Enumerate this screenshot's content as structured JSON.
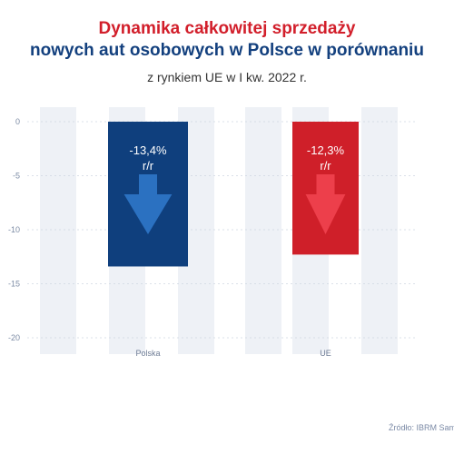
{
  "title_line1": "Dynamika całkowitej sprzedaży",
  "title_line2": "nowych aut osobowych w Polsce w porównaniu",
  "subtitle": "z rynkiem UE w I kw. 2022 r.",
  "source": "Źródło: IBRM Sam",
  "colors": {
    "poland": "#0f3f7d",
    "eu": "#cf1f29",
    "arrow_poland": "#2f77c9",
    "arrow_eu": "#f0434f",
    "band": "#eef1f6"
  },
  "chart_data": {
    "type": "bar",
    "categories": [
      "Polska",
      "UE"
    ],
    "values": [
      -13.4,
      -12.3
    ],
    "labels": [
      "-13,4%\nr/r",
      "-12,3%\nr/r"
    ],
    "yticks": [
      "0",
      "-5",
      "-10",
      "-15",
      "-20"
    ],
    "ylim": [
      -20,
      0
    ],
    "title": "Dynamika całkowitej sprzedaży nowych aut osobowych w Polsce w porównaniu z rynkiem UE w I kw. 2022 r."
  }
}
